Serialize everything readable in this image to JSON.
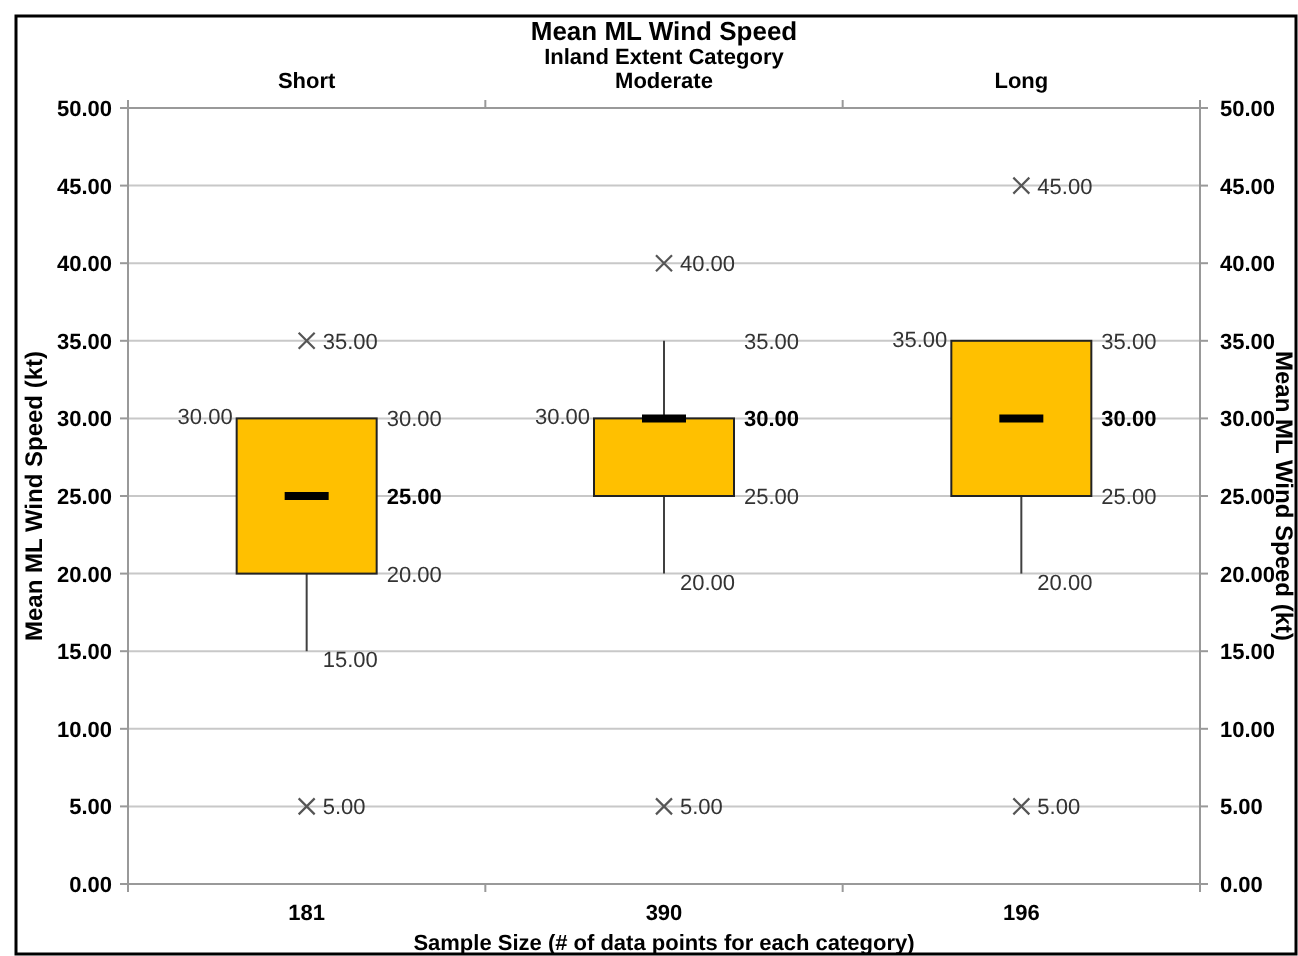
{
  "chart_data": {
    "type": "box",
    "title": "Mean ML Wind Speed",
    "x2label": "Inland Extent Category",
    "xlabel": "Sample Size (# of data points for each category)",
    "ylabel": "Mean ML Wind Speed (kt)",
    "y2label": "Mean ML Wind Speed (kt)",
    "categories": [
      "Short",
      "Moderate",
      "Long"
    ],
    "boxes": [
      {
        "low": 15,
        "q1": 20,
        "median": 25,
        "q3": 30,
        "high": 30,
        "outliers": [
          35,
          5
        ]
      },
      {
        "low": 20,
        "q1": 25,
        "median": 30,
        "q3": 30,
        "high": 35,
        "outliers": [
          40,
          5
        ]
      },
      {
        "low": 20,
        "q1": 25,
        "median": 30,
        "q3": 35,
        "high": 35,
        "outliers": [
          45,
          5
        ]
      }
    ],
    "color": "#ffc000",
    "annotations": [
      "181",
      "390",
      "196"
    ],
    "value_labels": [
      [
        "30.00",
        "30.00",
        "25.00",
        "20.00",
        "15.00",
        "35.00",
        "5.00"
      ],
      [
        "30.00",
        "35.00",
        "30.00",
        "25.00",
        "20.00",
        "40.00",
        "5.00"
      ],
      [
        "35.00",
        "35.00",
        "30.00",
        "25.00",
        "20.00",
        "45.00",
        "5.00"
      ]
    ],
    "ylim": [
      0,
      50
    ],
    "yticks": [
      {
        "value": 0,
        "label": "0.00"
      },
      {
        "value": 5,
        "label": "5.00"
      },
      {
        "value": 10,
        "label": "10.00"
      },
      {
        "value": 15,
        "label": "15.00"
      },
      {
        "value": 20,
        "label": "20.00"
      },
      {
        "value": 25,
        "label": "25.00"
      },
      {
        "value": 30,
        "label": "30.00"
      },
      {
        "value": 35,
        "label": "35.00"
      },
      {
        "value": 40,
        "label": "40.00"
      },
      {
        "value": 45,
        "label": "45.00"
      },
      {
        "value": 50,
        "label": "50.00"
      }
    ],
    "y2lim": [
      0,
      50
    ],
    "y2ticks": [
      {
        "value": 0,
        "label": "0.00"
      },
      {
        "value": 5,
        "label": "5.00"
      },
      {
        "value": 10,
        "label": "10.00"
      },
      {
        "value": 15,
        "label": "15.00"
      },
      {
        "value": 20,
        "label": "20.00"
      },
      {
        "value": 25,
        "label": "25.00"
      },
      {
        "value": 30,
        "label": "30.00"
      },
      {
        "value": 35,
        "label": "35.00"
      },
      {
        "value": 40,
        "label": "40.00"
      },
      {
        "value": 45,
        "label": "45.00"
      },
      {
        "value": 50,
        "label": "50.00"
      }
    ],
    "grid": "y"
  }
}
